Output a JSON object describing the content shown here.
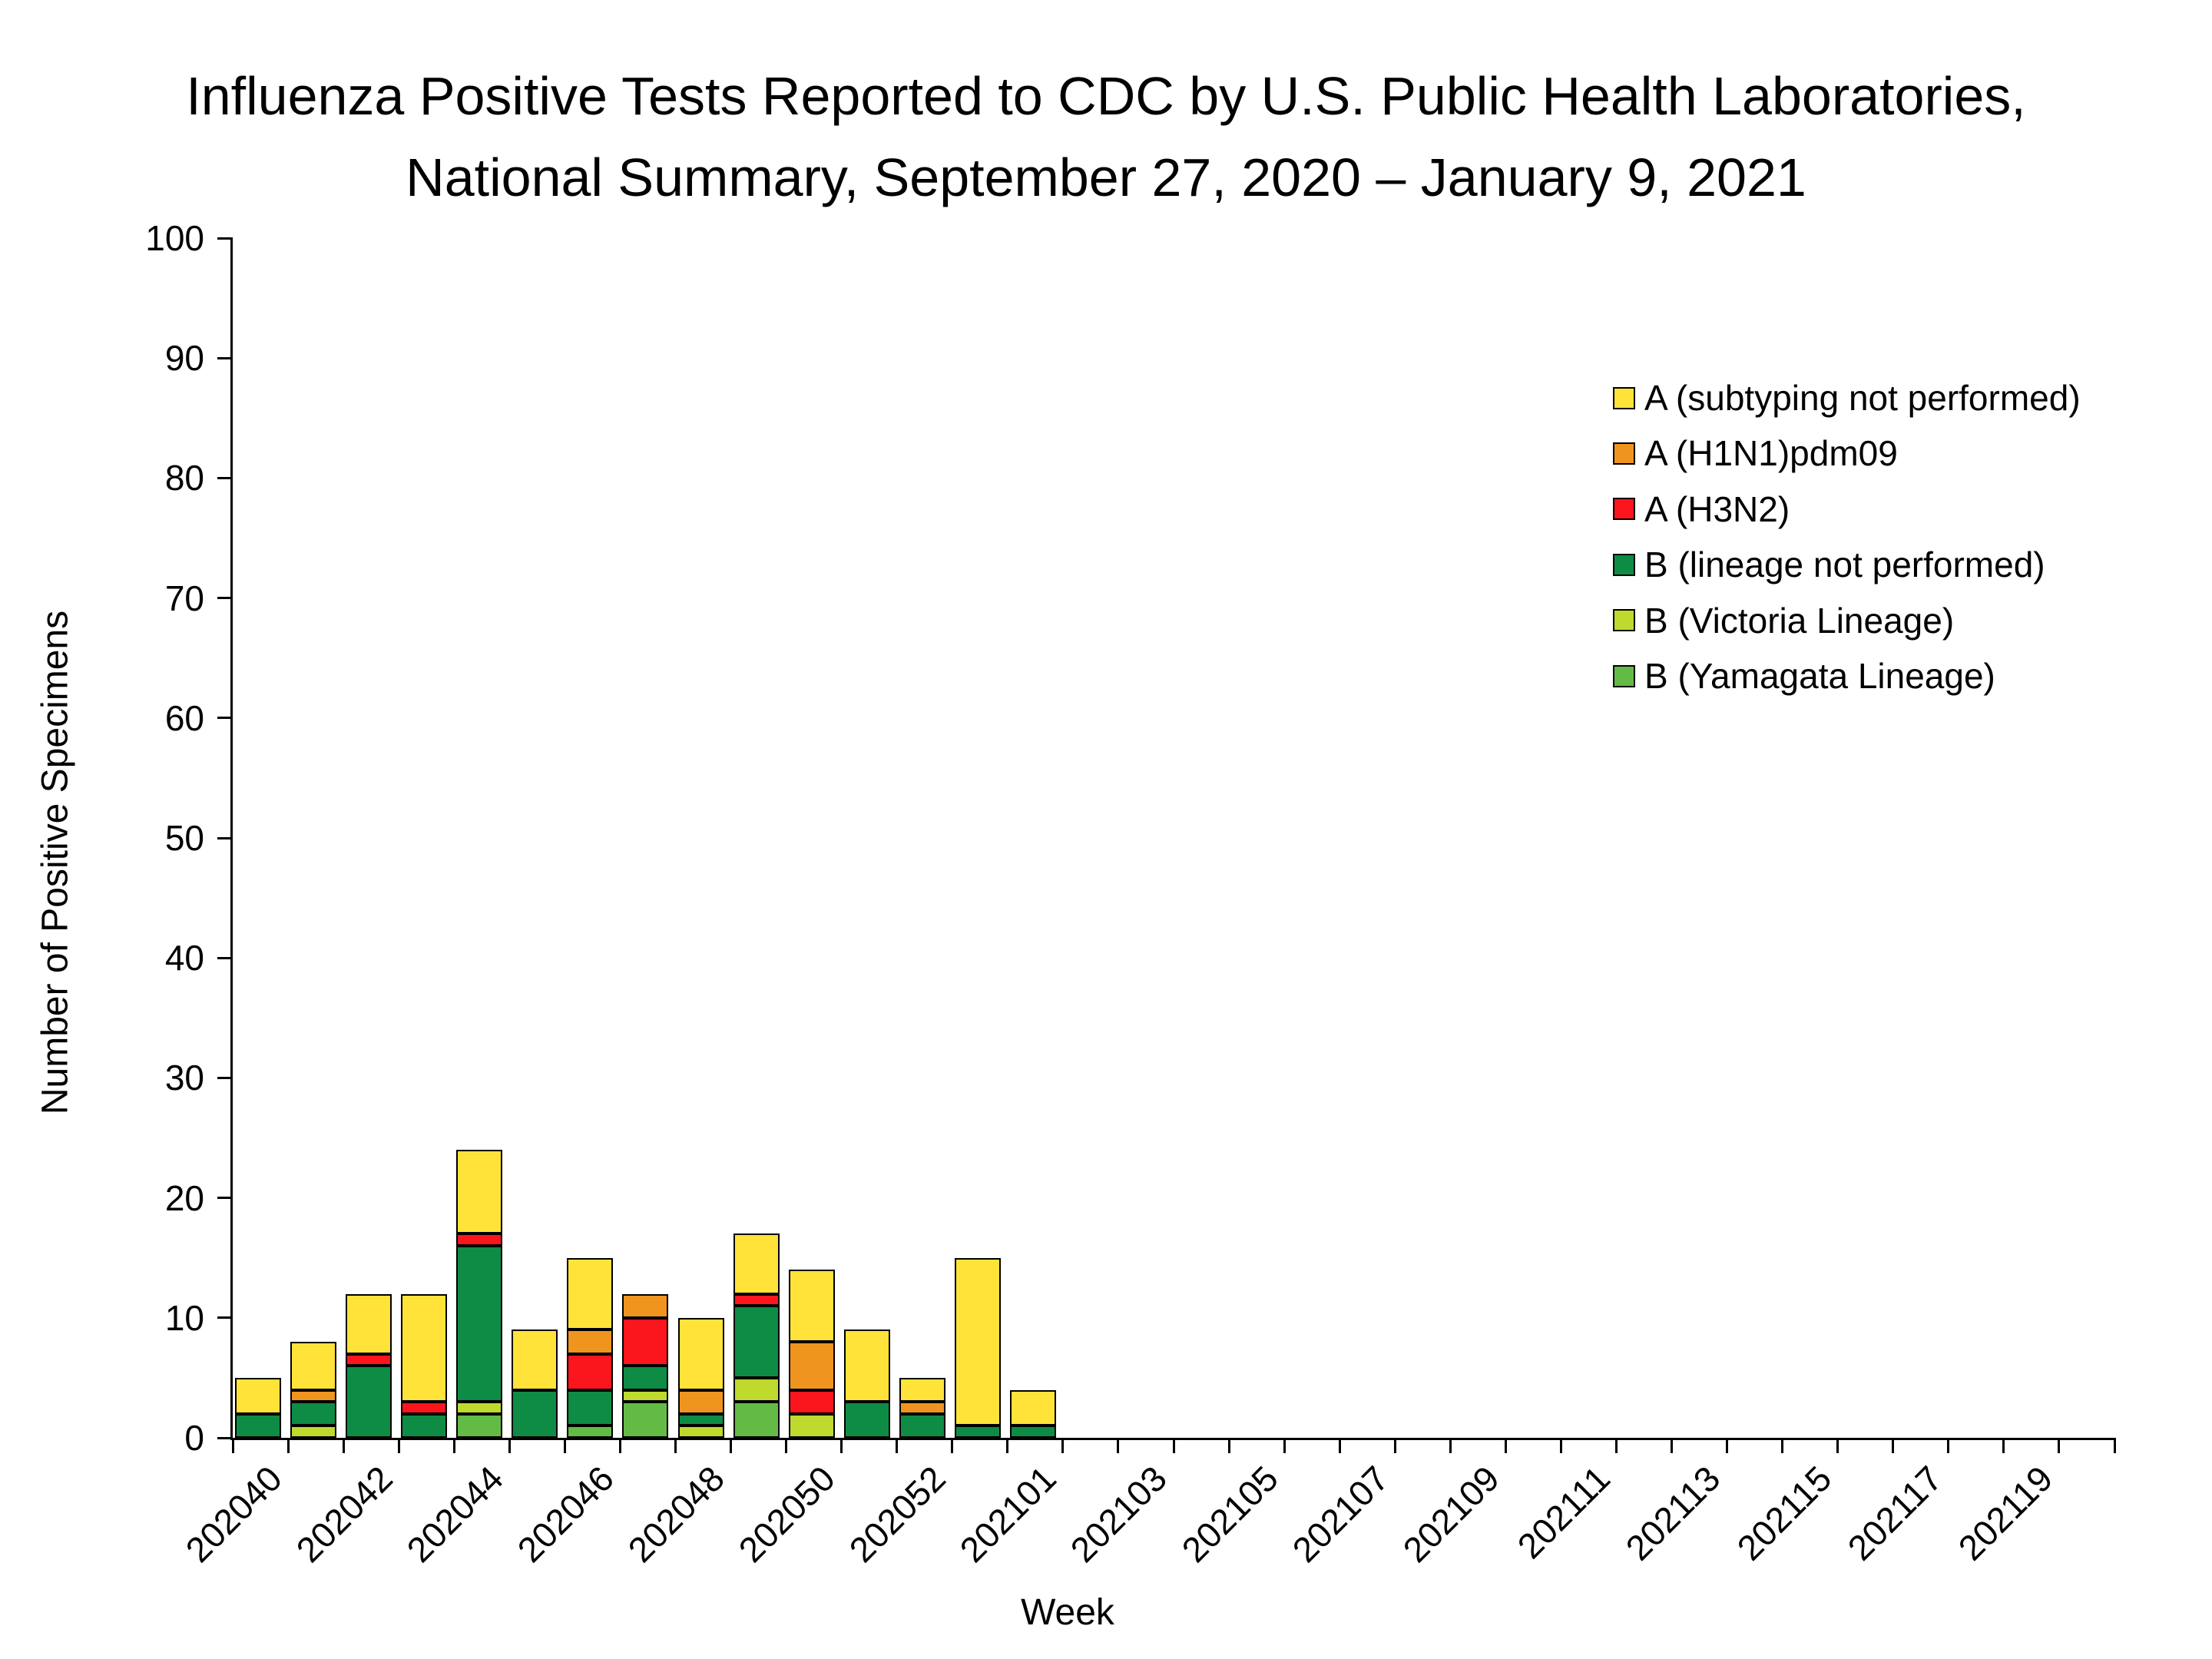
{
  "title": {
    "line1": "Influenza Positive Tests Reported to CDC by U.S. Public Health Laboratories,",
    "line2": "National Summary, September 27, 2020 – January 9, 2021"
  },
  "axes": {
    "x_title": "Week",
    "y_title": "Number of Positive Specimens"
  },
  "colors": {
    "a_subtyping_not_performed": "#FFE339",
    "a_h1n1_pdm09": "#F09420",
    "a_h3n2": "#FB151D",
    "b_lineage_not_performed": "#0E8B45",
    "b_victoria": "#BFD92E",
    "b_yamagata": "#63BB46",
    "axis": "#000000",
    "background": "#FFFFFF"
  },
  "legend": {
    "position": "right",
    "items": [
      {
        "label": "A (subtyping not performed)",
        "color": "#FFE339"
      },
      {
        "label": "A (H1N1)pdm09",
        "color": "#F09420"
      },
      {
        "label": "A (H3N2)",
        "color": "#FB151D"
      },
      {
        "label": "B (lineage not performed)",
        "color": "#0E8B45"
      },
      {
        "label": "B (Victoria Lineage)",
        "color": "#BFD92E"
      },
      {
        "label": "B (Yamagata Lineage)",
        "color": "#63BB46"
      }
    ]
  },
  "chart_data": {
    "type": "bar",
    "stacked": true,
    "title": "Influenza Positive Tests Reported to CDC by U.S. Public Health Laboratories, National Summary, September 27, 2020 – January 9, 2021",
    "xlabel": "Week",
    "ylabel": "Number of Positive Specimens",
    "ylim": [
      0,
      100
    ],
    "ytick_interval": 10,
    "ytick_labels": [
      "0",
      "10",
      "20",
      "30",
      "40",
      "50",
      "60",
      "70",
      "80",
      "90",
      "100"
    ],
    "grid": false,
    "legend_position": "right",
    "categories": [
      "202040",
      "202041",
      "202042",
      "202043",
      "202044",
      "202045",
      "202046",
      "202047",
      "202048",
      "202049",
      "202050",
      "202051",
      "202052",
      "202053",
      "202101",
      "202102",
      "202103",
      "202104",
      "202105",
      "202106",
      "202107",
      "202108",
      "202109",
      "202110",
      "202111",
      "202112",
      "202113",
      "202114",
      "202115",
      "202116",
      "202117",
      "202118",
      "202119",
      "202120"
    ],
    "xtick_labels_shown": [
      "202040",
      "202042",
      "202044",
      "202046",
      "202048",
      "202050",
      "202052",
      "202101",
      "202103",
      "202105",
      "202107",
      "202109",
      "202111",
      "202113",
      "202115",
      "202117",
      "202119"
    ],
    "stack_order_bottom_to_top": [
      "B (Yamagata Lineage)",
      "B (Victoria Lineage)",
      "B (lineage not performed)",
      "A (H3N2)",
      "A (H1N1)pdm09",
      "A (subtyping not performed)"
    ],
    "series": [
      {
        "name": "A (subtyping not performed)",
        "color": "#FFE339",
        "values": [
          3,
          4,
          5,
          9,
          7,
          5,
          6,
          0,
          6,
          5,
          6,
          6,
          2,
          14,
          3,
          0,
          0,
          0,
          0,
          0,
          0,
          0,
          0,
          0,
          0,
          0,
          0,
          0,
          0,
          0,
          0,
          0,
          0,
          0
        ]
      },
      {
        "name": "A (H1N1)pdm09",
        "color": "#F09420",
        "values": [
          0,
          1,
          0,
          0,
          0,
          0,
          2,
          2,
          2,
          0,
          4,
          0,
          1,
          0,
          0,
          0,
          0,
          0,
          0,
          0,
          0,
          0,
          0,
          0,
          0,
          0,
          0,
          0,
          0,
          0,
          0,
          0,
          0,
          0
        ]
      },
      {
        "name": "A (H3N2)",
        "color": "#FB151D",
        "values": [
          0,
          0,
          1,
          1,
          1,
          0,
          3,
          4,
          0,
          1,
          2,
          0,
          0,
          0,
          0,
          0,
          0,
          0,
          0,
          0,
          0,
          0,
          0,
          0,
          0,
          0,
          0,
          0,
          0,
          0,
          0,
          0,
          0,
          0
        ]
      },
      {
        "name": "B (lineage not performed)",
        "color": "#0E8B45",
        "values": [
          2,
          2,
          6,
          2,
          13,
          4,
          3,
          2,
          1,
          6,
          0,
          3,
          2,
          1,
          1,
          0,
          0,
          0,
          0,
          0,
          0,
          0,
          0,
          0,
          0,
          0,
          0,
          0,
          0,
          0,
          0,
          0,
          0,
          0
        ]
      },
      {
        "name": "B (Victoria Lineage)",
        "color": "#BFD92E",
        "values": [
          0,
          1,
          0,
          0,
          1,
          0,
          0,
          1,
          1,
          2,
          2,
          0,
          0,
          0,
          0,
          0,
          0,
          0,
          0,
          0,
          0,
          0,
          0,
          0,
          0,
          0,
          0,
          0,
          0,
          0,
          0,
          0,
          0,
          0
        ]
      },
      {
        "name": "B (Yamagata Lineage)",
        "color": "#63BB46",
        "values": [
          0,
          0,
          0,
          0,
          2,
          0,
          1,
          3,
          0,
          3,
          0,
          0,
          0,
          0,
          0,
          0,
          0,
          0,
          0,
          0,
          0,
          0,
          0,
          0,
          0,
          0,
          0,
          0,
          0,
          0,
          0,
          0,
          0,
          0
        ]
      }
    ],
    "weekly_totals": [
      5,
      8,
      12,
      12,
      24,
      9,
      15,
      12,
      10,
      17,
      14,
      9,
      5,
      15,
      4,
      0,
      0,
      0,
      0,
      0,
      0,
      0,
      0,
      0,
      0,
      0,
      0,
      0,
      0,
      0,
      0,
      0,
      0,
      0
    ]
  }
}
